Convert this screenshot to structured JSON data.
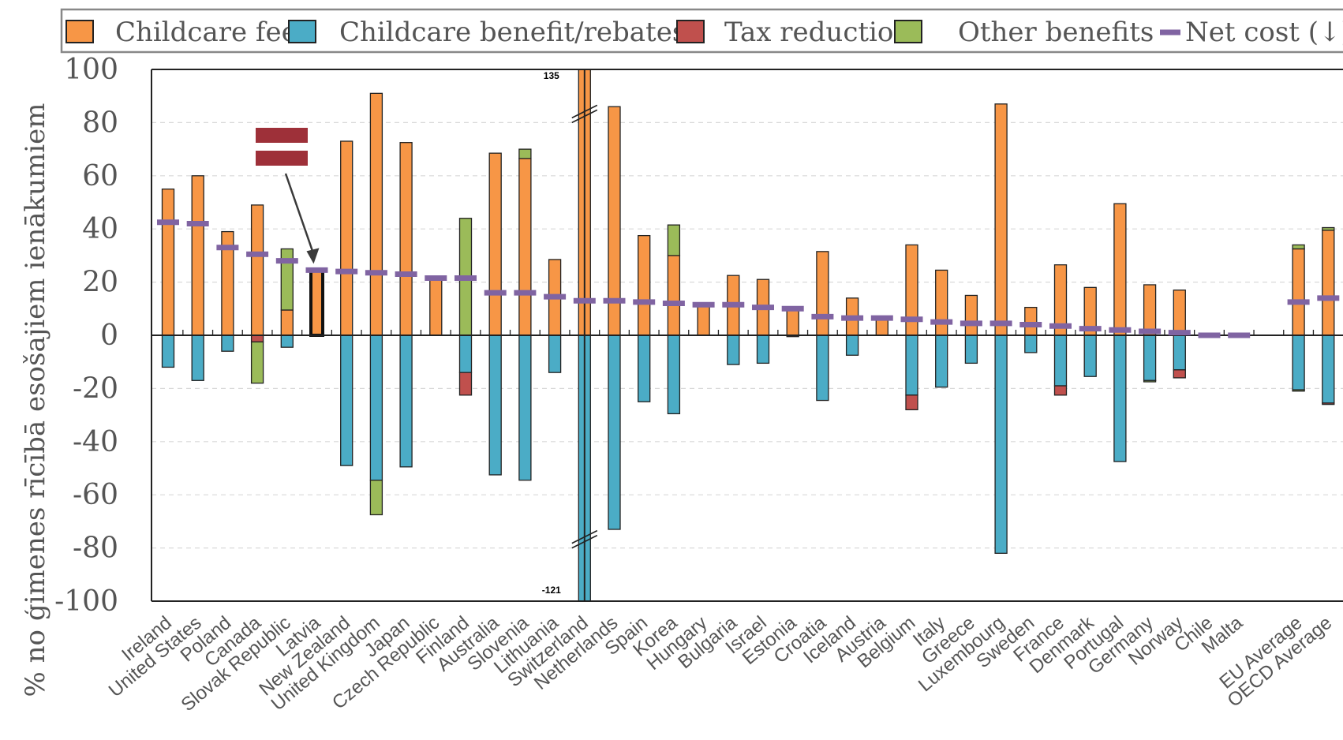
{
  "chart_data": {
    "type": "bar",
    "ylabel": "% no ģimenes rīcībā esošajiem ienākumiem",
    "ylim": [
      -100,
      100
    ],
    "yticks": [
      100,
      80,
      60,
      40,
      20,
      0,
      -20,
      -40,
      -60,
      -80,
      -100
    ],
    "ytick_labels": [
      "100",
      "80",
      "60",
      "40",
      "20",
      "0",
      "-20",
      "-40",
      "-60",
      "-80",
      "-100"
    ],
    "grid": true,
    "legend": {
      "placement": "top",
      "entries": [
        {
          "key": "fee",
          "label": "Childcare fee",
          "color": "#f79646"
        },
        {
          "key": "benefit",
          "label": "Childcare benefit/rebates",
          "color": "#4bacc6"
        },
        {
          "key": "tax",
          "label": "Tax reduction",
          "color": "#c0504d"
        },
        {
          "key": "other",
          "label": "Other benefits",
          "color": "#9bbb59"
        },
        {
          "key": "net",
          "label": "Net cost (↓)",
          "color": "#8064a2"
        }
      ]
    },
    "break_labels": {
      "top": "135",
      "bottom": "-121"
    },
    "highlight": {
      "country": "Latvia",
      "flag_colors": [
        "#9e3039",
        "#ffffff",
        "#9e3039"
      ]
    },
    "categories": [
      {
        "name": "Ireland",
        "fee": 55,
        "other_pos": 0,
        "benefit": -12,
        "tax": 0,
        "other_neg": 0,
        "net": 42.5
      },
      {
        "name": "United States",
        "fee": 60,
        "other_pos": 0,
        "benefit": -17,
        "tax": 0,
        "other_neg": 0,
        "net": 42
      },
      {
        "name": "Poland",
        "fee": 39,
        "other_pos": 0,
        "benefit": -6,
        "tax": 0,
        "other_neg": 0,
        "net": 33
      },
      {
        "name": "Canada",
        "fee": 49,
        "other_pos": 0,
        "benefit": 0,
        "tax": -2.5,
        "other_neg": -15.5,
        "net": 30.5
      },
      {
        "name": "Slovak Republic",
        "fee": 9.5,
        "other_pos": 23,
        "benefit": -4.5,
        "tax": 0,
        "other_neg": 0,
        "net": 28
      },
      {
        "name": "Latvia",
        "fee": 24.5,
        "other_pos": 0,
        "benefit": 0,
        "tax": 0,
        "other_neg": 0,
        "net": 24.5
      },
      {
        "name": "New Zealand",
        "fee": 73,
        "other_pos": 0,
        "benefit": -49,
        "tax": 0,
        "other_neg": 0,
        "net": 24
      },
      {
        "name": "United Kingdom",
        "fee": 91,
        "other_pos": 0,
        "benefit": -54.5,
        "tax": 0,
        "other_neg": -13,
        "net": 23.5
      },
      {
        "name": "Japan",
        "fee": 72.5,
        "other_pos": 0,
        "benefit": -49.5,
        "tax": 0,
        "other_neg": 0,
        "net": 23
      },
      {
        "name": "Czech Republic",
        "fee": 21.5,
        "other_pos": 0,
        "benefit": 0,
        "tax": 0,
        "other_neg": 0,
        "net": 21.5
      },
      {
        "name": "Finland",
        "fee": 0,
        "other_pos": 44,
        "benefit": -14,
        "tax": -8.5,
        "other_neg": 0,
        "net": 21.5
      },
      {
        "name": "Australia",
        "fee": 68.5,
        "other_pos": 0,
        "benefit": -52.5,
        "tax": 0,
        "other_neg": 0,
        "net": 16
      },
      {
        "name": "Slovenia",
        "fee": 66.5,
        "other_pos": 3.5,
        "benefit": -54.5,
        "tax": 0,
        "other_neg": 0,
        "net": 16
      },
      {
        "name": "Lithuania",
        "fee": 28.5,
        "other_pos": 0,
        "benefit": -14,
        "tax": 0,
        "other_neg": 0,
        "net": 14.5
      },
      {
        "name": "Switzerland",
        "fee": 135,
        "other_pos": 0,
        "benefit": -121,
        "tax": 0,
        "other_neg": 0,
        "net": 13
      },
      {
        "name": "Netherlands",
        "fee": 86,
        "other_pos": 0,
        "benefit": -73,
        "tax": 0,
        "other_neg": 0,
        "net": 13
      },
      {
        "name": "Spain",
        "fee": 37.5,
        "other_pos": 0,
        "benefit": -25,
        "tax": 0,
        "other_neg": 0,
        "net": 12.5
      },
      {
        "name": "Korea",
        "fee": 30,
        "other_pos": 11.5,
        "benefit": -29.5,
        "tax": 0,
        "other_neg": 0,
        "net": 12
      },
      {
        "name": "Hungary",
        "fee": 11.5,
        "other_pos": 0,
        "benefit": 0,
        "tax": 0,
        "other_neg": 0,
        "net": 11.5
      },
      {
        "name": "Bulgaria",
        "fee": 22.5,
        "other_pos": 0,
        "benefit": -11,
        "tax": 0,
        "other_neg": 0,
        "net": 11.5
      },
      {
        "name": "Israel",
        "fee": 21,
        "other_pos": 0,
        "benefit": -10.5,
        "tax": 0,
        "other_neg": 0,
        "net": 10.5
      },
      {
        "name": "Estonia",
        "fee": 10,
        "other_pos": 0,
        "benefit": 0,
        "tax": -0.5,
        "other_neg": 0,
        "net": 10
      },
      {
        "name": "Croatia",
        "fee": 31.5,
        "other_pos": 0,
        "benefit": -24.5,
        "tax": 0,
        "other_neg": 0,
        "net": 7
      },
      {
        "name": "Iceland",
        "fee": 14,
        "other_pos": 0,
        "benefit": -7.5,
        "tax": 0,
        "other_neg": 0,
        "net": 6.5
      },
      {
        "name": "Austria",
        "fee": 6.5,
        "other_pos": 0,
        "benefit": 0,
        "tax": 0,
        "other_neg": 0,
        "net": 6.5
      },
      {
        "name": "Belgium",
        "fee": 34,
        "other_pos": 0,
        "benefit": -22.5,
        "tax": -5.5,
        "other_neg": 0,
        "net": 6
      },
      {
        "name": "Italy",
        "fee": 24.5,
        "other_pos": 0,
        "benefit": -19.5,
        "tax": 0,
        "other_neg": 0,
        "net": 5
      },
      {
        "name": "Greece",
        "fee": 15,
        "other_pos": 0,
        "benefit": -10.5,
        "tax": 0,
        "other_neg": 0,
        "net": 4.5
      },
      {
        "name": "Luxembourg",
        "fee": 87,
        "other_pos": 0,
        "benefit": -82,
        "tax": 0,
        "other_neg": 0,
        "net": 4.5
      },
      {
        "name": "Sweden",
        "fee": 10.5,
        "other_pos": 0,
        "benefit": -6.5,
        "tax": 0,
        "other_neg": 0,
        "net": 4
      },
      {
        "name": "France",
        "fee": 26.5,
        "other_pos": 0,
        "benefit": -19,
        "tax": -3.5,
        "other_neg": 0,
        "net": 3.5
      },
      {
        "name": "Denmark",
        "fee": 18,
        "other_pos": 0,
        "benefit": -15.5,
        "tax": 0,
        "other_neg": 0,
        "net": 2.5
      },
      {
        "name": "Portugal",
        "fee": 49.5,
        "other_pos": 0,
        "benefit": -47.5,
        "tax": 0,
        "other_neg": 0,
        "net": 2
      },
      {
        "name": "Germany",
        "fee": 19,
        "other_pos": 0,
        "benefit": -17,
        "tax": 0,
        "other_neg": -0.5,
        "net": 1.5
      },
      {
        "name": "Norway",
        "fee": 17,
        "other_pos": 0,
        "benefit": -13,
        "tax": -3,
        "other_neg": 0,
        "net": 1
      },
      {
        "name": "Chile",
        "fee": 0,
        "other_pos": 0,
        "benefit": 0,
        "tax": 0,
        "other_neg": 0,
        "net": 0
      },
      {
        "name": "Malta",
        "fee": 0,
        "other_pos": 0,
        "benefit": 0,
        "tax": 0,
        "other_neg": 0,
        "net": 0
      },
      {
        "name": "",
        "fee": 0,
        "other_pos": 0,
        "benefit": 0,
        "tax": 0,
        "other_neg": 0,
        "net": null
      },
      {
        "name": "EU Average",
        "fee": 32.5,
        "other_pos": 1.5,
        "benefit": -20.5,
        "tax": 0,
        "other_neg": -0.5,
        "net": 12.5
      },
      {
        "name": "OECD Average",
        "fee": 39.5,
        "other_pos": 1,
        "benefit": -25.5,
        "tax": -0.5,
        "other_neg": 0,
        "net": 14
      }
    ]
  }
}
